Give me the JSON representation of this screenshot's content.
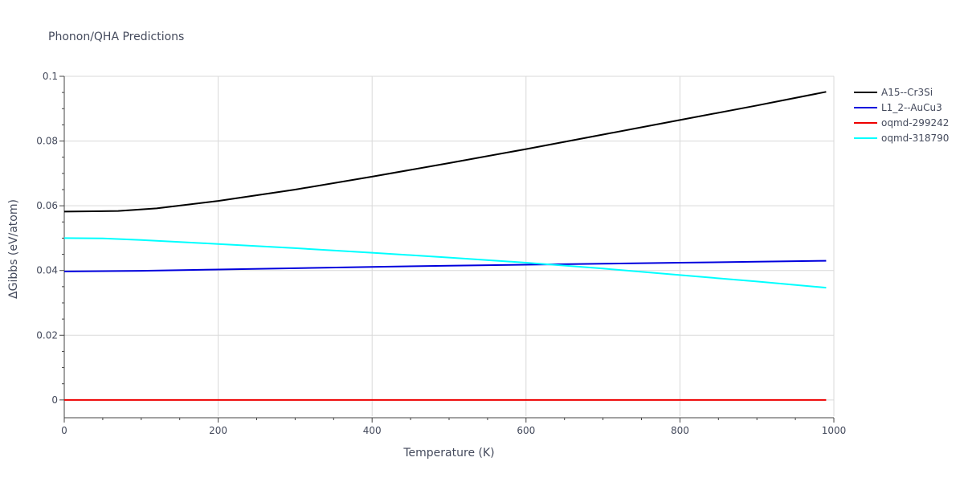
{
  "chart_data": {
    "type": "line",
    "title": "Phonon/QHA Predictions",
    "xlabel": "Temperature (K)",
    "ylabel": "ΔGibbs (eV/atom)",
    "xlim": [
      0,
      1000
    ],
    "ylim": [
      -0.005,
      0.1
    ],
    "x_ticks": [
      0,
      200,
      400,
      600,
      800,
      1000
    ],
    "y_ticks": [
      0,
      0.02,
      0.04,
      0.06,
      0.08,
      0.1
    ],
    "x_tick_labels": [
      "0",
      "200",
      "400",
      "600",
      "800",
      "1000"
    ],
    "y_tick_labels": [
      "0",
      "0.02",
      "0.04",
      "0.06",
      "0.08",
      "0.1"
    ],
    "grid": true,
    "legend_position": "top-right",
    "series": [
      {
        "name": "A15--Cr3Si",
        "color": "#000000",
        "x": [
          0,
          70,
          120,
          200,
          300,
          400,
          500,
          600,
          700,
          800,
          900,
          990
        ],
        "y": [
          0.0582,
          0.0584,
          0.0592,
          0.0615,
          0.065,
          0.069,
          0.0732,
          0.0775,
          0.082,
          0.0865,
          0.091,
          0.0952
        ]
      },
      {
        "name": "L1_2--AuCu3",
        "color": "#0000dd",
        "x": [
          0,
          100,
          200,
          300,
          400,
          500,
          600,
          700,
          800,
          900,
          990
        ],
        "y": [
          0.0397,
          0.0399,
          0.0403,
          0.0407,
          0.0411,
          0.0415,
          0.0418,
          0.0421,
          0.0424,
          0.0427,
          0.043
        ]
      },
      {
        "name": "oqmd-299242",
        "color": "#ee0000",
        "x": [
          0,
          990
        ],
        "y": [
          0.0,
          0.0
        ]
      },
      {
        "name": "oqmd-318790",
        "color": "#00ffff",
        "x": [
          0,
          50,
          100,
          200,
          300,
          400,
          500,
          600,
          700,
          800,
          900,
          990
        ],
        "y": [
          0.05,
          0.0499,
          0.0494,
          0.0482,
          0.0469,
          0.0455,
          0.044,
          0.0424,
          0.0406,
          0.0386,
          0.0366,
          0.0347
        ]
      }
    ]
  }
}
